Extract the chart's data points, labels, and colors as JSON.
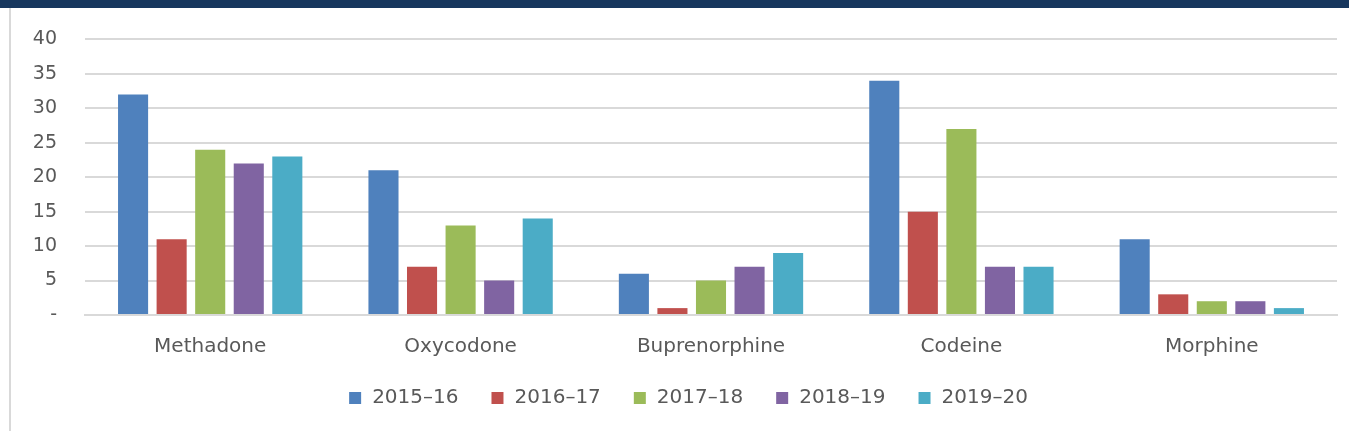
{
  "chart_data": {
    "type": "bar",
    "categories": [
      "Methadone",
      "Oxycodone",
      "Buprenorphine",
      "Codeine",
      "Morphine"
    ],
    "series": [
      {
        "name": "2015–16",
        "color": "#4f81bd",
        "values": [
          32,
          21,
          6,
          34,
          11
        ]
      },
      {
        "name": "2016–17",
        "color": "#c0504d",
        "values": [
          11,
          7,
          1,
          15,
          3
        ]
      },
      {
        "name": "2017–18",
        "color": "#9bbb59",
        "values": [
          24,
          13,
          5,
          27,
          2
        ]
      },
      {
        "name": "2018–19",
        "color": "#8064a2",
        "values": [
          22,
          5,
          7,
          7,
          2
        ]
      },
      {
        "name": "2019–20",
        "color": "#4bacc6",
        "values": [
          23,
          14,
          9,
          7,
          1
        ]
      }
    ],
    "ylim": [
      0,
      40
    ],
    "yticks": [
      {
        "value": 0,
        "label": "-"
      },
      5,
      10,
      15,
      20,
      25,
      30,
      35,
      40
    ],
    "grid": "y",
    "legend": "bottom"
  }
}
